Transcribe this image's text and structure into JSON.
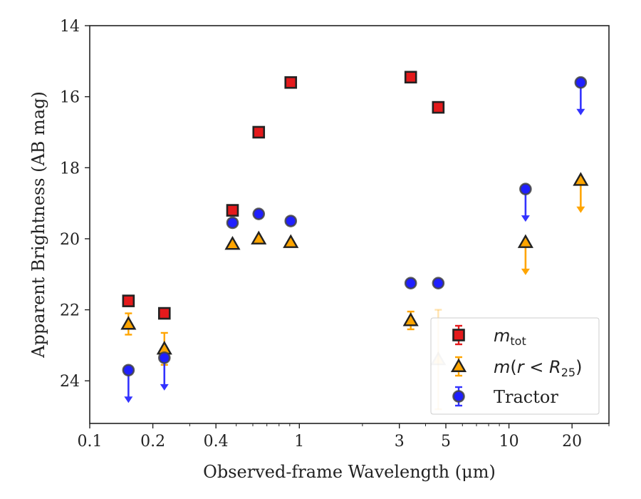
{
  "chart_data": {
    "type": "scatter",
    "xscale": "log",
    "yaxis_inverted": true,
    "xlim": [
      0.1,
      30
    ],
    "ylim": [
      14,
      25.2
    ],
    "xlabel": "Observed-frame Wavelength (μm)",
    "ylabel": "Apparent Brightness (AB mag)",
    "xticks": [
      {
        "value": 0.1,
        "label": "0.1"
      },
      {
        "value": 0.2,
        "label": "0.2"
      },
      {
        "value": 0.4,
        "label": "0.4"
      },
      {
        "value": 1,
        "label": "1"
      },
      {
        "value": 3,
        "label": "3"
      },
      {
        "value": 5,
        "label": "5"
      },
      {
        "value": 10,
        "label": "10"
      },
      {
        "value": 20,
        "label": "20"
      }
    ],
    "yticks": [
      {
        "value": 14,
        "label": "14"
      },
      {
        "value": 16,
        "label": "16"
      },
      {
        "value": 18,
        "label": "18"
      },
      {
        "value": 20,
        "label": "20"
      },
      {
        "value": 22,
        "label": "22"
      },
      {
        "value": 24,
        "label": "24"
      }
    ],
    "legend_position": "bottom-right",
    "series": [
      {
        "key": "mtot",
        "name": "m_tot",
        "marker": "square",
        "color": "#e41a1c",
        "error_color": "#e41a1c",
        "points": [
          {
            "x": 0.153,
            "y": 21.75
          },
          {
            "x": 0.227,
            "y": 22.1
          },
          {
            "x": 0.48,
            "y": 19.2
          },
          {
            "x": 0.64,
            "y": 17.0
          },
          {
            "x": 0.91,
            "y": 15.6
          },
          {
            "x": 3.4,
            "y": 15.45
          },
          {
            "x": 4.6,
            "y": 16.3
          }
        ]
      },
      {
        "key": "mr25",
        "name": "m(r<R25)",
        "marker": "triangle",
        "color": "#ffa500",
        "error_color": "#ffa500",
        "points": [
          {
            "x": 0.153,
            "y": 22.4,
            "yerr": 0.3
          },
          {
            "x": 0.227,
            "y": 23.1,
            "yerr": 0.45
          },
          {
            "x": 0.48,
            "y": 20.15
          },
          {
            "x": 0.64,
            "y": 20.0
          },
          {
            "x": 0.91,
            "y": 20.1
          },
          {
            "x": 3.4,
            "y": 22.3,
            "yerr": 0.25
          },
          {
            "x": 4.6,
            "y": 23.4,
            "yerr": 1.4,
            "faded": true
          },
          {
            "x": 12,
            "y": 20.1,
            "upper_limit": true
          },
          {
            "x": 22,
            "y": 18.35,
            "upper_limit": true
          }
        ]
      },
      {
        "key": "tractor",
        "name": "Tractor",
        "marker": "circle",
        "color": "#1f1fff",
        "error_color": "#3333ff",
        "points": [
          {
            "x": 0.153,
            "y": 23.7,
            "upper_limit": true
          },
          {
            "x": 0.227,
            "y": 23.35,
            "upper_limit": true
          },
          {
            "x": 0.48,
            "y": 19.55
          },
          {
            "x": 0.64,
            "y": 19.3
          },
          {
            "x": 0.91,
            "y": 19.5
          },
          {
            "x": 3.4,
            "y": 21.25
          },
          {
            "x": 4.6,
            "y": 21.25
          },
          {
            "x": 12,
            "y": 18.6,
            "upper_limit": true
          },
          {
            "x": 22,
            "y": 15.6,
            "upper_limit": true
          }
        ]
      }
    ]
  }
}
